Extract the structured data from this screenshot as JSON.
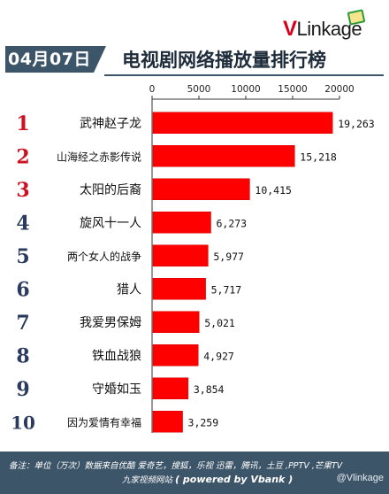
{
  "brand": {
    "logo_text_v": "V",
    "logo_text_rest": "Linkage"
  },
  "header": {
    "date": "04月07日",
    "title": "电视剧网络播放量排行榜"
  },
  "footer": {
    "note_line1": "备注：单位（万次）数据来自优酷 爱奇艺，搜狐，乐视  迅雷，腾讯，土豆 ,PPTV ,芒果TV",
    "note_line2_prefix": "九家视频网站",
    "note_line2_powered": "( powered by Vbank )",
    "watermark": "@Vlinkage"
  },
  "colors": {
    "bar": "#ff0000",
    "rank_red": "#cc1122",
    "rank_blue": "#2a3b5e",
    "header_bg": "#3d5569"
  },
  "chart_data": {
    "type": "bar",
    "orientation": "horizontal",
    "categories": [
      "武神赵子龙",
      "山海经之赤影传说",
      "太阳的后裔",
      "旋风十一人",
      "两个女人的战争",
      "猎人",
      "我爱男保姆",
      "铁血战狼",
      "守婚如玉",
      "因为爱情有幸福"
    ],
    "ranks": [
      "1",
      "2",
      "3",
      "4",
      "5",
      "6",
      "7",
      "8",
      "9",
      "10"
    ],
    "values": [
      19263,
      15218,
      10415,
      6273,
      5977,
      5717,
      5021,
      4927,
      3854,
      3259
    ],
    "value_labels": [
      "19,263",
      "15,218",
      "10,415",
      "6,273",
      "5,977",
      "5,717",
      "5,021",
      "4,927",
      "3,854",
      "3,259"
    ],
    "xlim": [
      0,
      20000
    ],
    "xticks": [
      0,
      5000,
      10000,
      15000,
      20000
    ],
    "xtick_labels": [
      "0",
      "5000",
      "10000",
      "15000",
      "20000"
    ],
    "grid": false
  }
}
